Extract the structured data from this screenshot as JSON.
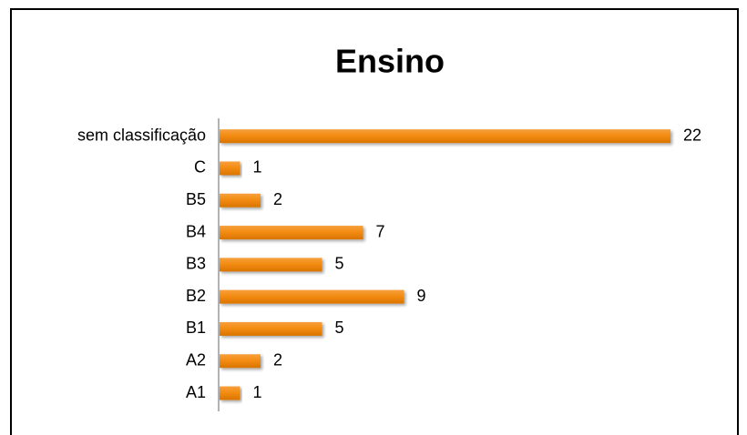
{
  "chart_data": {
    "type": "bar",
    "orientation": "horizontal",
    "title": "Ensino",
    "categories": [
      "sem classificação",
      "C",
      "B5",
      "B4",
      "B3",
      "B2",
      "B1",
      "A2",
      "A1"
    ],
    "values": [
      22,
      1,
      2,
      7,
      5,
      9,
      5,
      2,
      1
    ],
    "color": "#f28a0f"
  }
}
